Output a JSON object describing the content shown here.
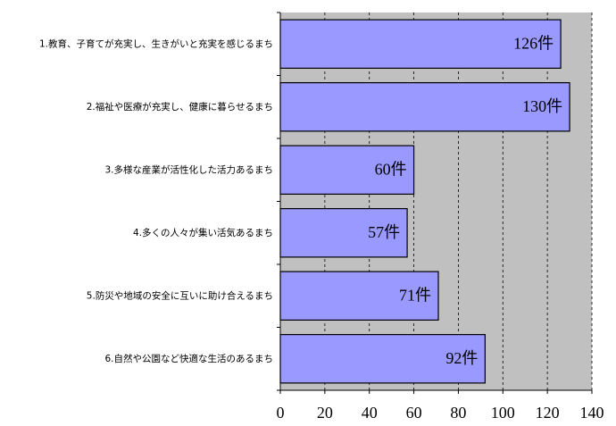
{
  "chart_data": {
    "type": "bar",
    "orientation": "horizontal",
    "categories": [
      "1.教育、子育てが充実し、生きがいと充実を感じるまち",
      "2.福祉や医療が充実し、健康に暮らせるまち",
      "3.多様な産業が活性化した活力あるまち",
      "4.多くの人々が集い活気あるまち",
      "5.防災や地域の安全に互いに助け合えるまち",
      "6.自然や公園など快適な生活のあるまち"
    ],
    "values": [
      126,
      130,
      60,
      57,
      71,
      92
    ],
    "value_labels": [
      "126件",
      "130件",
      "60件",
      "57件",
      "71件",
      "92件"
    ],
    "color": "#9999ff",
    "xlim": [
      0,
      140
    ],
    "xticks": [
      0,
      20,
      40,
      60,
      80,
      100,
      120,
      140
    ],
    "grid": true,
    "plot_background": "#c0c0c0"
  }
}
